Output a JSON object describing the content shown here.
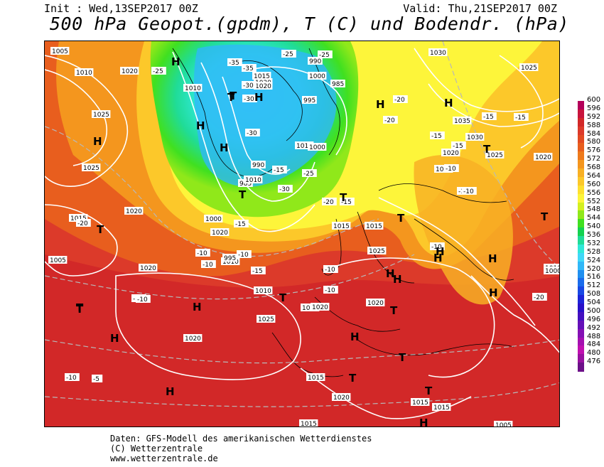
{
  "header": {
    "init": "Init : Wed,13SEP2017 00Z",
    "valid": "Valid: Thu,21SEP2017 00Z",
    "title": "500 hPa Geopot.(gpdm), T (C) und Bodendr. (hPa)"
  },
  "legend": {
    "values": [
      "600",
      "596",
      "592",
      "588",
      "584",
      "580",
      "576",
      "572",
      "568",
      "564",
      "560",
      "556",
      "552",
      "548",
      "544",
      "540",
      "536",
      "532",
      "528",
      "524",
      "520",
      "516",
      "512",
      "508",
      "504",
      "500",
      "496",
      "492",
      "488",
      "484",
      "480",
      "476"
    ],
    "colors": [
      "#b4005a",
      "#c8143c",
      "#d22828",
      "#dc3a2a",
      "#e24a22",
      "#e85e1e",
      "#ee7a1c",
      "#f4961e",
      "#f8b024",
      "#fcc82a",
      "#fee030",
      "#fdf53a",
      "#d4f020",
      "#90e81a",
      "#40e020",
      "#14d250",
      "#20dc98",
      "#30e8d8",
      "#40d8f8",
      "#30b8f8",
      "#2090f0",
      "#1a6cec",
      "#1848e4",
      "#1c24d8",
      "#2810c8",
      "#4410c0",
      "#6410b8",
      "#8410b4",
      "#a410b0",
      "#c010b0",
      "#9810a0",
      "#6c1088"
    ]
  },
  "pressure_labels": [
    "1005",
    "1010",
    "1020",
    "1010",
    "1025",
    "1025",
    "1015",
    "1020",
    "1020",
    "1005",
    "1015",
    "1020",
    "995",
    "1000",
    "1015",
    "990",
    "985",
    "1000",
    "1030",
    "1025",
    "1035",
    "1030",
    "1025",
    "1020",
    "1015",
    "1020",
    "1015",
    "1015",
    "1020",
    "1025",
    "1020",
    "1010",
    "1010",
    "1025",
    "1020",
    "1020",
    "1020",
    "1025",
    "1015",
    "1020",
    "1015",
    "1015",
    "1015",
    "1005",
    "1010",
    "1000",
    "995",
    "1000",
    "990",
    "985",
    "1010"
  ],
  "temperature_labels": [
    "-25",
    "-35",
    "-35",
    "-25",
    "-25",
    "-30",
    "-30",
    "-30",
    "-30",
    "-25",
    "-20",
    "-20",
    "-20",
    "-15",
    "-15",
    "-15",
    "-15",
    "-10",
    "-10",
    "-15",
    "-15",
    "-15",
    "-15",
    "-20",
    "-15",
    "-10",
    "-10",
    "-10",
    "-10",
    "-10",
    "-10",
    "-10",
    "-10",
    "-10",
    "-5",
    "-20"
  ],
  "systems": [
    "H",
    "H",
    "H",
    "T",
    "T",
    "H",
    "H",
    "H",
    "T",
    "T",
    "H",
    "T",
    "T",
    "H",
    "H",
    "H",
    "T",
    "H",
    "T",
    "H",
    "H",
    "H",
    "T",
    "H",
    "H",
    "H",
    "T",
    "T",
    "T",
    "T",
    "T",
    "H",
    "T"
  ],
  "credits": [
    "Daten: GFS-Modell des amerikanischen Wetterdienstes",
    "(C) Wetterzentrale",
    "www.wetterzentrale.de"
  ]
}
